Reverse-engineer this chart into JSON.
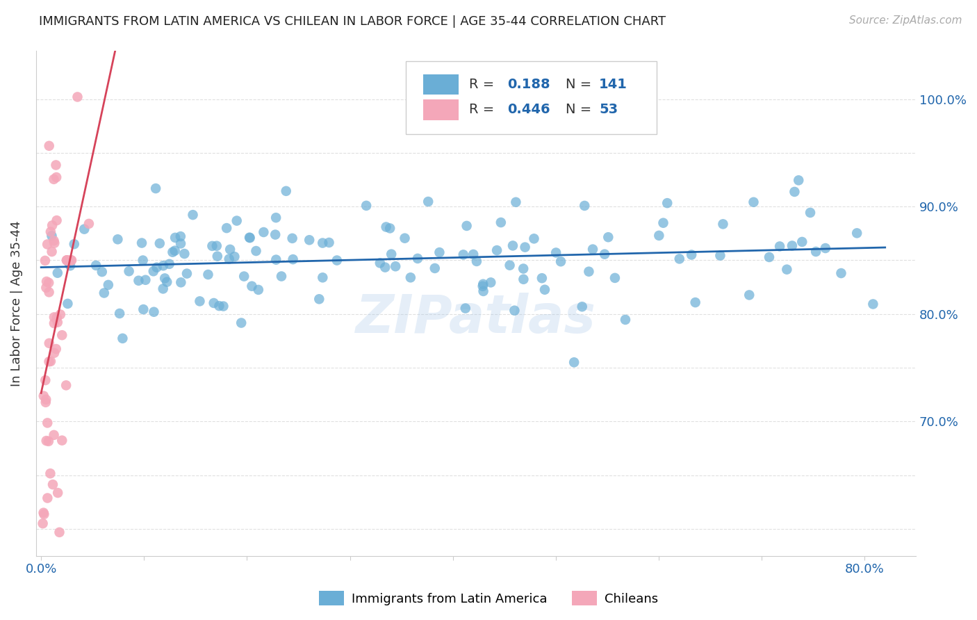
{
  "title": "IMMIGRANTS FROM LATIN AMERICA VS CHILEAN IN LABOR FORCE | AGE 35-44 CORRELATION CHART",
  "source": "Source: ZipAtlas.com",
  "ylabel_label": "In Labor Force | Age 35-44",
  "xlim": [
    -0.005,
    0.85
  ],
  "ylim": [
    0.575,
    1.045
  ],
  "blue_color": "#6aaed6",
  "pink_color": "#f4a7b9",
  "blue_line_color": "#2166ac",
  "pink_line_color": "#d6435a",
  "grid_color": "#e0e0e0",
  "watermark": "ZIPatlas",
  "legend_R_blue": "0.188",
  "legend_N_blue": "141",
  "legend_R_pink": "0.446",
  "legend_N_pink": "53",
  "title_fontsize": 13,
  "axis_label_fontsize": 13,
  "tick_fontsize": 13,
  "source_fontsize": 11
}
